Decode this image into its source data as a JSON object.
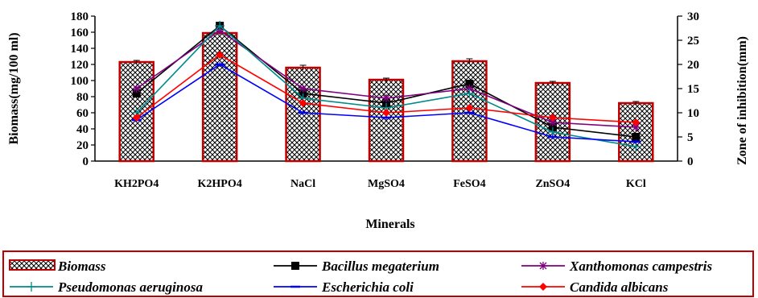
{
  "chart_data": {
    "type": "bar",
    "categories": [
      "KH2PO4",
      "K2HPO4",
      "NaCl",
      "MgSO4",
      "FeSO4",
      "ZnSO4",
      "KCl"
    ],
    "xlabel": "Minerals",
    "ylabel": "Biomass(mg/100 ml)",
    "y2label": "Zone of inhibition(mm)",
    "ylim": [
      0,
      180
    ],
    "y2lim": [
      0,
      30
    ],
    "yticks": [
      0,
      20,
      40,
      60,
      80,
      100,
      120,
      140,
      160,
      180
    ],
    "y2ticks": [
      0,
      5,
      10,
      15,
      20,
      25,
      30
    ],
    "legend_position": "bottom",
    "bar_series": {
      "name": "Biomass",
      "values": [
        123,
        159,
        116,
        101,
        124,
        97,
        72
      ],
      "errors": [
        2,
        2,
        3,
        2,
        3,
        2,
        2
      ],
      "fill": "crosshatch",
      "color": "#c00000"
    },
    "line_series": [
      {
        "name": "Bacillus megaterium",
        "color": "#000000",
        "marker": "square",
        "values": [
          14,
          28,
          14,
          12,
          16,
          7,
          5
        ]
      },
      {
        "name": "Xanthomonas campestris",
        "color": "#800080",
        "marker": "star",
        "values": [
          15,
          27,
          15,
          13,
          15,
          8,
          7
        ]
      },
      {
        "name": "Pseudomonas aeruginosa",
        "color": "#008b8b",
        "marker": "plus",
        "values": [
          10,
          28,
          13,
          11,
          14,
          6,
          3
        ]
      },
      {
        "name": "Escherichia coli",
        "color": "#0000ff",
        "marker": "dash",
        "values": [
          8.5,
          20,
          10,
          9,
          10,
          5,
          4
        ]
      },
      {
        "name": "Candida albicans",
        "color": "#ff0000",
        "marker": "diamond",
        "values": [
          9,
          22,
          12,
          10,
          11,
          9,
          8
        ]
      }
    ]
  }
}
